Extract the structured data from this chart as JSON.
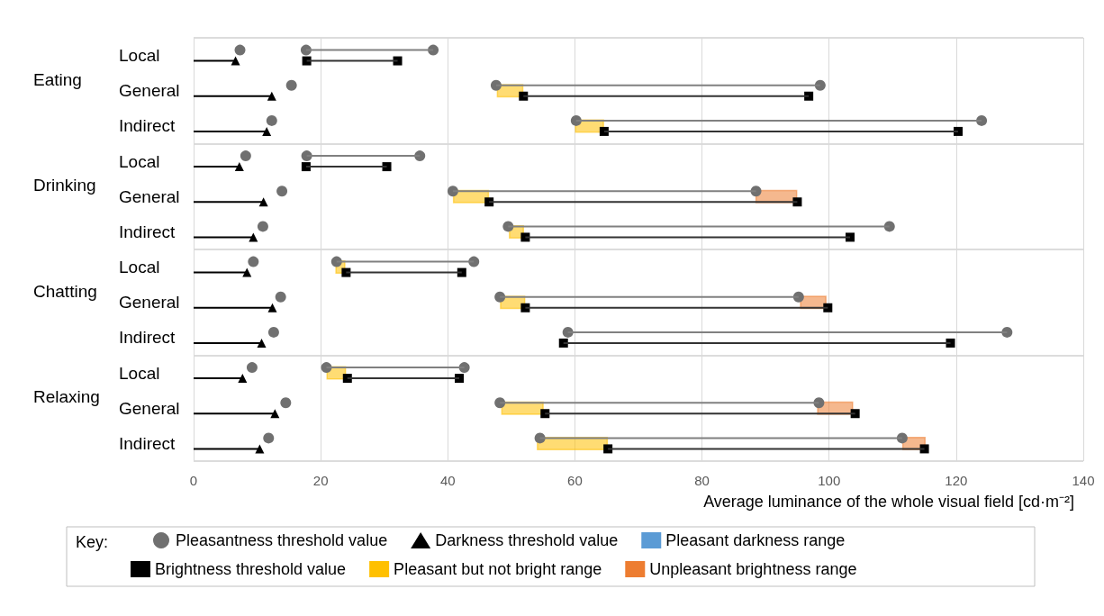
{
  "chart_data": {
    "type": "scatter",
    "orientation": "horizontal",
    "categories": [
      "Local",
      "General",
      "Indirect",
      "Local",
      "General",
      "Indirect",
      "Local",
      "General",
      "Indirect",
      "Local",
      "General",
      "Indirect"
    ],
    "annotations": [
      "Eating",
      "Drinking",
      "Chatting",
      "Relaxing"
    ],
    "xlabel": "Average luminance of the whole visual field [cd·m⁻²]",
    "legend_title": "Key:",
    "xlim": [
      0,
      140
    ],
    "xticks": [
      0,
      20,
      40,
      60,
      80,
      100,
      120,
      140
    ],
    "grid": true,
    "legend": "bottom",
    "series": [
      {
        "type": "bar",
        "color": "#808080",
        "base": [
          17.7,
          47.6,
          60.2,
          17.8,
          40.8,
          49.5,
          22.5,
          48.2,
          58.9,
          20.9,
          48.2,
          54.5
        ],
        "values": [
          20.0,
          51.0,
          63.8,
          17.8,
          47.7,
          60.0,
          21.6,
          47.0,
          69.1,
          21.7,
          50.2,
          57.0
        ]
      },
      {
        "type": "bar",
        "color": "#000000",
        "values": [
          6.6,
          12.3,
          11.5,
          7.2,
          11.0,
          9.4,
          8.4,
          12.4,
          10.7,
          7.7,
          12.8,
          10.4
        ]
      },
      {
        "type": "bar",
        "color": "#333333",
        "base": [
          17.8,
          51.9,
          64.6,
          17.7,
          46.5,
          52.2,
          24.0,
          52.2,
          58.2,
          24.2,
          55.3,
          65.2
        ],
        "values": [
          14.3,
          44.9,
          55.7,
          12.7,
          48.5,
          51.1,
          18.2,
          47.6,
          60.9,
          17.6,
          48.8,
          49.8
        ]
      },
      {
        "name": "Pleasantness threshold value",
        "marker": "circle",
        "color": "#707070",
        "values": [
          7.3,
          15.4,
          12.3,
          8.2,
          13.9,
          10.9,
          9.4,
          13.7,
          12.6,
          9.2,
          14.5,
          11.8
        ]
      },
      {
        "name": "Darkness threshold value",
        "marker": "triangle",
        "color": "#000000",
        "values": [
          6.6,
          12.3,
          11.5,
          7.2,
          11.0,
          9.4,
          8.4,
          12.4,
          10.7,
          7.7,
          12.8,
          10.4
        ]
      },
      {
        "name": "Pleasant darkness range",
        "type": "bar",
        "color": "#5b9bd5",
        "values": [
          null,
          null,
          null,
          null,
          null,
          null,
          null,
          null,
          null,
          null,
          null,
          null
        ]
      },
      {
        "name": "Brightness threshold value",
        "marker": "square",
        "color": "#000000",
        "values": [
          17.8,
          51.9,
          64.6,
          17.7,
          46.5,
          52.2,
          24.0,
          52.2,
          58.2,
          24.2,
          55.3,
          65.2
        ]
      },
      {
        "name": "Pleasant but not bright range",
        "type": "bar",
        "color": "#ffc000",
        "base": [
          null,
          47.7,
          60.0,
          null,
          40.8,
          49.6,
          22.3,
          48.2,
          null,
          20.9,
          48.4,
          54.0
        ],
        "values": [
          null,
          4.2,
          4.6,
          null,
          5.7,
          2.4,
          1.6,
          4.0,
          null,
          3.1,
          6.7,
          11.2
        ]
      },
      {
        "name": "Unpleasant brightness range",
        "type": "bar",
        "color": "#ed7d31",
        "base": [
          null,
          null,
          null,
          null,
          88.4,
          null,
          null,
          95.4,
          null,
          null,
          98.1,
          111.5
        ],
        "values": [
          null,
          null,
          null,
          null,
          6.6,
          null,
          null,
          4.2,
          null,
          null,
          5.7,
          3.7
        ]
      },
      {
        "marker": "circle",
        "color": "#707070",
        "values": [
          17.7,
          47.6,
          60.2,
          17.8,
          40.8,
          49.5,
          22.5,
          48.2,
          58.9,
          20.9,
          48.2,
          54.5
        ]
      },
      {
        "marker": "circle",
        "color": "#707070",
        "values": [
          37.7,
          98.6,
          124.0,
          35.6,
          88.5,
          109.5,
          44.1,
          95.2,
          128.0,
          42.6,
          98.4,
          111.5
        ]
      },
      {
        "marker": "square",
        "color": "#000000",
        "values": [
          32.1,
          96.8,
          120.3,
          30.4,
          95.0,
          103.3,
          42.2,
          99.8,
          119.1,
          41.8,
          104.1,
          115.0
        ]
      }
    ]
  }
}
